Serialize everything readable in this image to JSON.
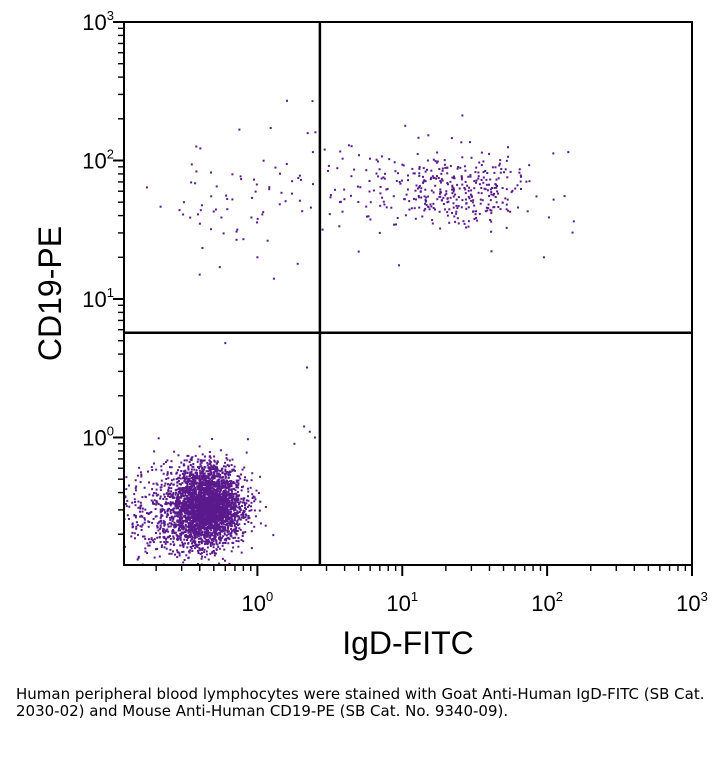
{
  "chart_data": {
    "type": "scatter",
    "xlabel": "IgD-FITC",
    "ylabel": "CD19-PE",
    "x_scale": "log",
    "y_scale": "log",
    "xlim": [
      0.12,
      1000
    ],
    "ylim": [
      0.12,
      1000
    ],
    "x_tick_labels": [
      {
        "value": 1,
        "base": "10",
        "exp": "0"
      },
      {
        "value": 10,
        "base": "10",
        "exp": "1"
      },
      {
        "value": 100,
        "base": "10",
        "exp": "2"
      },
      {
        "value": 1000,
        "base": "10",
        "exp": "3"
      }
    ],
    "y_tick_labels": [
      {
        "value": 1,
        "base": "10",
        "exp": "0"
      },
      {
        "value": 10,
        "base": "10",
        "exp": "1"
      },
      {
        "value": 100,
        "base": "10",
        "exp": "2"
      },
      {
        "value": 1000,
        "base": "10",
        "exp": "3"
      }
    ],
    "quadrant_gate": {
      "x": 2.7,
      "y": 5.7
    },
    "grid": false,
    "point_color": "#5a1a8c",
    "populations": [
      {
        "center_x": 0.45,
        "center_y": 0.32,
        "spread_log_x": 0.12,
        "spread_log_y": 0.14,
        "count": 3200
      },
      {
        "center_x": 0.25,
        "center_y": 0.27,
        "spread_log_x": 0.2,
        "spread_log_y": 0.2,
        "count": 500
      },
      {
        "center_x": 25,
        "center_y": 62,
        "spread_log_x": 0.25,
        "spread_log_y": 0.13,
        "count": 320
      },
      {
        "center_x": 6,
        "center_y": 65,
        "spread_log_x": 0.4,
        "spread_log_y": 0.2,
        "count": 90
      },
      {
        "center_x": 0.7,
        "center_y": 55,
        "spread_log_x": 0.3,
        "spread_log_y": 0.22,
        "count": 60
      }
    ],
    "outliers": [
      [
        1.6,
        270
      ],
      [
        0.6,
        4.8
      ],
      [
        2.2,
        3.2
      ],
      [
        2.3,
        1.1
      ],
      [
        2.1,
        1.2
      ],
      [
        0.4,
        15
      ],
      [
        1.3,
        14
      ],
      [
        1.0,
        20
      ],
      [
        0.8,
        27
      ],
      [
        7,
        30
      ],
      [
        5,
        22
      ],
      [
        9.5,
        17.5
      ],
      [
        95,
        20
      ],
      [
        140,
        115
      ],
      [
        22,
        145
      ],
      [
        2.5,
        1.0
      ],
      [
        1.8,
        0.9
      ],
      [
        0.55,
        17
      ]
    ],
    "caption": "Human peripheral blood lymphocytes were stained with Goat Anti-Human IgD-FITC (SB Cat. 2030-02) and Mouse Anti-Human CD19-PE (SB Cat. No. 9340-09)."
  }
}
